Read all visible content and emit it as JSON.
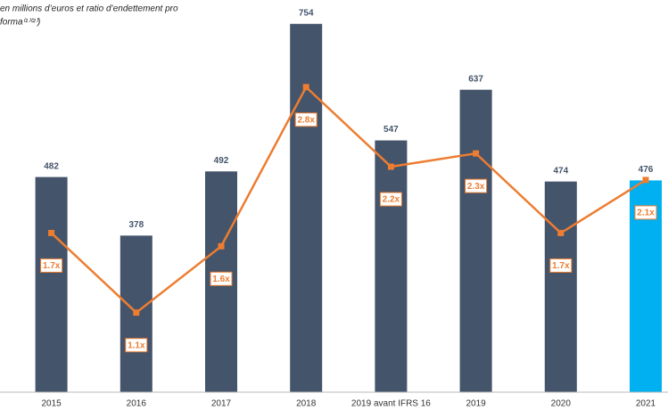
{
  "chart_data": {
    "type": "bar_line",
    "title": [
      "en millions d’euros et ratio d’endettement pro",
      "forma⁽¹⁾⁽²⁾)"
    ],
    "categories": [
      "2015",
      "2016",
      "2017",
      "2018",
      "2019 avant IFRS 16",
      "2019",
      "2020",
      "2021"
    ],
    "series": [
      {
        "type": "bar",
        "colors": [
          "#44546a",
          "#44546a",
          "#44546a",
          "#44546a",
          "#44546a",
          "#44546a",
          "#44546a",
          "#00b0f0"
        ],
        "values": [
          482,
          378,
          492,
          754,
          547,
          637,
          474,
          476
        ]
      },
      {
        "type": "line",
        "axis": "y2",
        "color": "#ed7d31",
        "values": [
          1.7,
          1.1,
          1.6,
          2.8,
          2.2,
          2.3,
          1.7,
          2.1
        ],
        "value_labels": [
          "1.7x",
          "1.1x",
          "1.6x",
          "2.8x",
          "2.2x",
          "2.3x",
          "1.7x",
          "2.1x"
        ]
      }
    ],
    "ylim": [
      100,
      790
    ],
    "y2lim": [
      0.5,
      3.43
    ]
  }
}
